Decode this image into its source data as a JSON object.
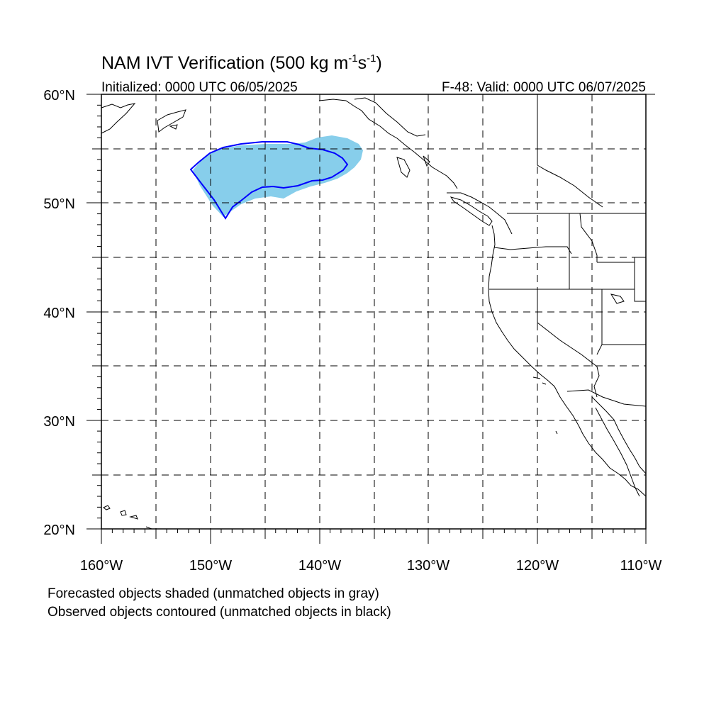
{
  "header": {
    "title_main": "NAM IVT Verification (500 kg m",
    "title_sup1": "-1",
    "title_mid": "s",
    "title_sup2": "-1",
    "title_end": ")",
    "initialized": "Initialized: 0000 UTC 06/05/2025",
    "valid": "F-48: Valid: 0000 UTC 06/07/2025"
  },
  "map": {
    "lat_labels": [
      "20°N",
      "30°N",
      "40°N",
      "50°N",
      "60°N"
    ],
    "lon_labels": [
      "160°W",
      "150°W",
      "140°W",
      "130°W",
      "120°W",
      "110°W"
    ],
    "colors": {
      "forecast_fill": "#87ceeb",
      "observed_contour": "#0000ff",
      "coastline": "#000000",
      "grid": "#000000"
    }
  },
  "legend": {
    "line1": "Forecasted objects shaded (unmatched objects in gray)",
    "line2": "Observed objects contoured (unmatched objects in black)"
  }
}
